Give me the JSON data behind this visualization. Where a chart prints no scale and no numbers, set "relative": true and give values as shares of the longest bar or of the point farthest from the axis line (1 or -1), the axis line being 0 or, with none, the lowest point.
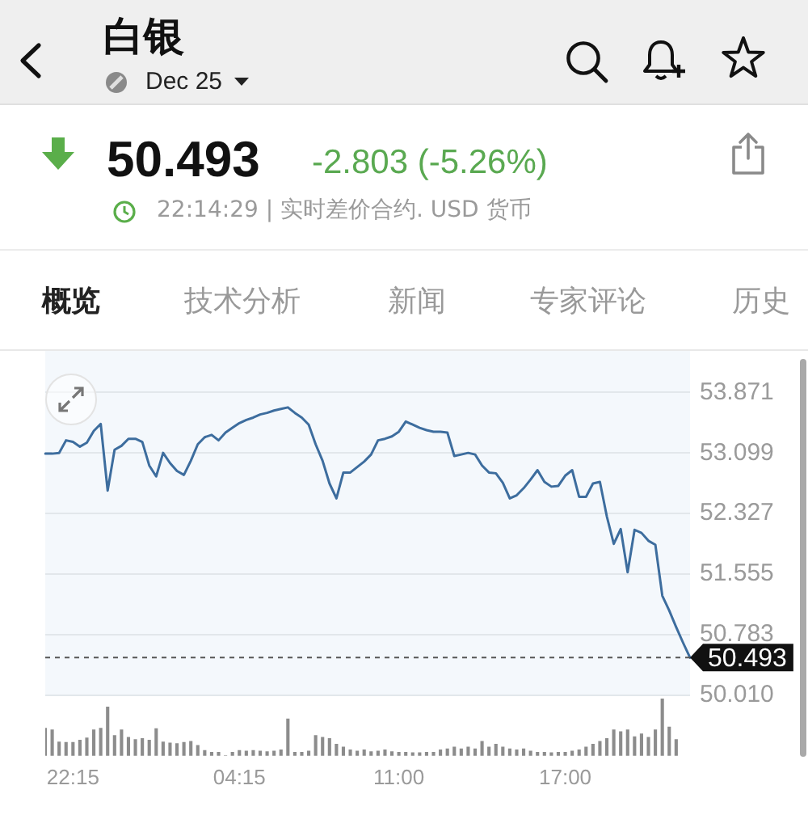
{
  "chart_data": [
    {
      "type": "line",
      "title": "白银",
      "subtitle": "Dec 25",
      "annotations": [
        "50.493",
        "-2.803 (-5.26%)",
        "22:14:29 | 实时差价合约. USD 货币",
        "概览",
        "技术分析",
        "新闻",
        "专家评论",
        "历史"
      ],
      "categories": [
        null,
        null,
        null,
        null,
        null,
        null,
        null,
        null,
        null,
        null,
        null,
        null,
        null,
        null,
        null,
        null,
        null,
        null,
        null,
        null,
        null,
        null,
        null,
        null,
        null,
        null,
        null,
        null,
        null,
        null,
        null,
        null,
        null,
        null,
        null,
        null,
        null,
        null,
        null,
        null,
        null,
        null,
        null,
        null,
        null,
        null,
        null,
        null,
        null,
        null,
        null,
        null,
        null,
        null,
        null,
        null,
        null,
        null,
        null,
        null,
        null,
        null,
        null,
        null,
        null,
        null,
        null,
        null,
        null,
        null,
        null,
        null,
        null,
        null,
        null,
        null,
        null,
        null,
        null,
        null,
        null,
        null,
        null,
        null,
        null,
        null,
        null,
        null,
        null,
        null,
        null,
        null,
        null,
        null
      ],
      "values": [
        53.09,
        53.09,
        53.1,
        53.26,
        53.24,
        53.18,
        53.23,
        53.38,
        53.47,
        52.62,
        53.14,
        53.19,
        53.28,
        53.28,
        53.24,
        52.94,
        52.8,
        53.1,
        52.97,
        52.87,
        52.82,
        53.0,
        53.21,
        53.3,
        53.33,
        53.26,
        53.36,
        53.42,
        53.48,
        53.52,
        53.55,
        53.59,
        53.61,
        53.64,
        53.66,
        53.68,
        53.61,
        53.55,
        53.46,
        53.21,
        53.0,
        52.71,
        52.52,
        52.85,
        52.85,
        52.92,
        52.99,
        53.08,
        53.26,
        53.28,
        53.31,
        53.37,
        53.5,
        53.46,
        53.42,
        53.39,
        53.37,
        53.37,
        53.36,
        53.06,
        53.08,
        53.1,
        53.08,
        52.94,
        52.85,
        52.84,
        52.72,
        52.52,
        52.56,
        52.65,
        52.76,
        52.88,
        52.73,
        52.67,
        52.68,
        52.81,
        52.88,
        52.54,
        52.54,
        52.71,
        52.73,
        52.29,
        51.94,
        52.13,
        51.58,
        52.12,
        52.08,
        51.98,
        51.93,
        51.28,
        51.09,
        50.88,
        50.68,
        50.49
      ],
      "color": "#3d6d9e",
      "ylim": [
        50.01,
        54.4
      ],
      "yticks": [
        {
          "value": 50.01,
          "label": "50.010"
        },
        50.783,
        51.555,
        52.327,
        53.099,
        53.871
      ],
      "grid": "y",
      "tick_labels": "y",
      "ref_lines": [
        {
          "axis": "y",
          "value": 50.493,
          "label": "50.493",
          "color": "#555555",
          "line_style": "dashed"
        }
      ]
    },
    {
      "type": "bar",
      "categories": [
        null,
        null,
        null,
        null,
        "22:15",
        null,
        null,
        null,
        null,
        null,
        null,
        null,
        null,
        null,
        null,
        null,
        null,
        null,
        null,
        null,
        null,
        null,
        null,
        null,
        null,
        null,
        null,
        null,
        "04:15",
        null,
        null,
        null,
        null,
        null,
        null,
        null,
        null,
        null,
        null,
        null,
        null,
        null,
        null,
        null,
        null,
        null,
        null,
        null,
        null,
        null,
        null,
        "11:00",
        null,
        null,
        null,
        null,
        null,
        null,
        null,
        null,
        null,
        null,
        null,
        null,
        null,
        null,
        null,
        null,
        null,
        null,
        null,
        null,
        null,
        null,
        null,
        "17:00",
        null,
        null,
        null,
        null,
        null,
        null,
        null,
        null,
        null,
        null,
        null,
        null,
        null,
        null,
        null,
        null,
        null,
        null
      ],
      "values": [
        0.48,
        0.45,
        0.24,
        0.23,
        0.23,
        0.27,
        0.31,
        0.45,
        0.48,
        0.85,
        0.35,
        0.45,
        0.32,
        0.28,
        0.3,
        0.27,
        0.47,
        0.24,
        0.22,
        0.21,
        0.23,
        0.25,
        0.18,
        0.09,
        0.06,
        0.06,
        0,
        0.06,
        0.09,
        0.08,
        0.09,
        0.08,
        0.07,
        0.08,
        0.1,
        0.64,
        0.06,
        0.06,
        0.08,
        0.35,
        0.32,
        0.3,
        0.2,
        0.15,
        0.1,
        0.08,
        0.1,
        0.07,
        0.08,
        0.1,
        0.07,
        0.06,
        0.06,
        0.05,
        0.05,
        0.06,
        0.06,
        0.1,
        0.12,
        0.15,
        0.12,
        0.15,
        0.12,
        0.25,
        0.15,
        0.2,
        0.15,
        0.12,
        0.1,
        0.12,
        0.08,
        0.06,
        0.06,
        0.05,
        0.06,
        0.06,
        0.08,
        0.1,
        0.15,
        0.2,
        0.25,
        0.3,
        0.45,
        0.42,
        0.45,
        0.33,
        0.38,
        0.32,
        0.45,
        1,
        0.5,
        0.28,
        null,
        null
      ],
      "color": "#8c8c8c",
      "relative": true,
      "tick_labels": "x"
    }
  ]
}
